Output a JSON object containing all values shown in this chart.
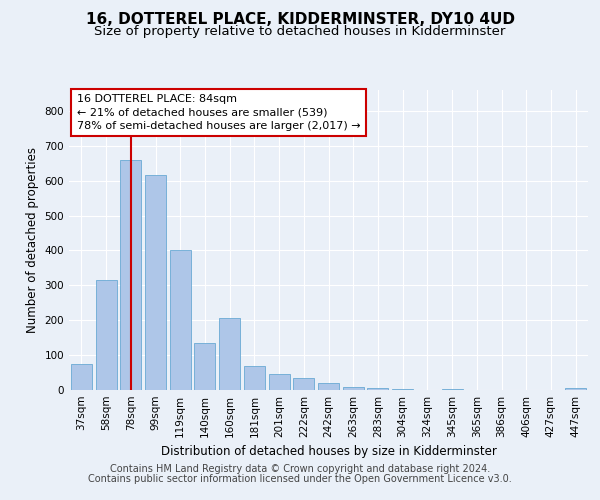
{
  "title": "16, DOTTEREL PLACE, KIDDERMINSTER, DY10 4UD",
  "subtitle": "Size of property relative to detached houses in Kidderminster",
  "xlabel": "Distribution of detached houses by size in Kidderminster",
  "ylabel": "Number of detached properties",
  "categories": [
    "37sqm",
    "58sqm",
    "78sqm",
    "99sqm",
    "119sqm",
    "140sqm",
    "160sqm",
    "181sqm",
    "201sqm",
    "222sqm",
    "242sqm",
    "263sqm",
    "283sqm",
    "304sqm",
    "324sqm",
    "345sqm",
    "365sqm",
    "386sqm",
    "406sqm",
    "427sqm",
    "447sqm"
  ],
  "values": [
    75,
    315,
    660,
    615,
    400,
    135,
    205,
    70,
    45,
    35,
    20,
    10,
    5,
    3,
    0,
    3,
    0,
    0,
    0,
    0,
    5
  ],
  "bar_color": "#aec6e8",
  "bar_edgecolor": "#6aaad4",
  "vline_x": 2,
  "vline_color": "#cc0000",
  "annotation_text": "16 DOTTEREL PLACE: 84sqm\n← 21% of detached houses are smaller (539)\n78% of semi-detached houses are larger (2,017) →",
  "annotation_box_facecolor": "#ffffff",
  "annotation_box_edgecolor": "#cc0000",
  "footer_line1": "Contains HM Land Registry data © Crown copyright and database right 2024.",
  "footer_line2": "Contains public sector information licensed under the Open Government Licence v3.0.",
  "background_color": "#eaf0f8",
  "ylim": [
    0,
    860
  ],
  "yticks": [
    0,
    100,
    200,
    300,
    400,
    500,
    600,
    700,
    800
  ],
  "title_fontsize": 11,
  "subtitle_fontsize": 9.5,
  "axis_label_fontsize": 8.5,
  "tick_fontsize": 7.5,
  "footer_fontsize": 7,
  "ann_fontsize": 8
}
